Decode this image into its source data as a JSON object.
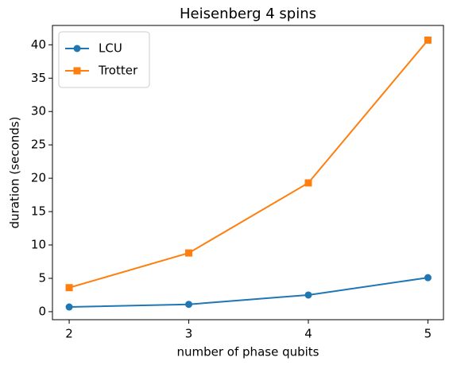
{
  "chart_data": {
    "type": "line",
    "title": "Heisenberg 4 spins",
    "x_label": "number of phase qubits",
    "y_label": "duration (seconds)",
    "x": [
      2,
      3,
      4,
      5
    ],
    "series": [
      {
        "name": "LCU",
        "color": "#1f77b4",
        "marker": "circle",
        "values": [
          0.7,
          1.1,
          2.5,
          5.1
        ]
      },
      {
        "name": "Trotter",
        "color": "#ff7f0e",
        "marker": "square",
        "values": [
          3.6,
          8.8,
          19.3,
          40.7
        ]
      }
    ],
    "xlim": [
      1.86,
      5.13
    ],
    "xticks": [
      2,
      3,
      4,
      5
    ],
    "ylim": [
      -1.2,
      42.9
    ],
    "yticks": [
      0,
      5,
      10,
      15,
      20,
      25,
      30,
      35,
      40
    ],
    "legend": "upper-left"
  }
}
